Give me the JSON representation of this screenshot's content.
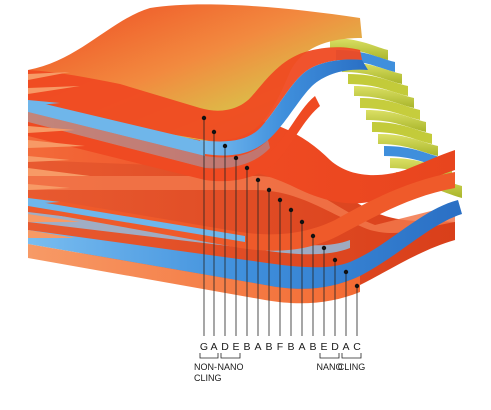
{
  "layer_labels": [
    "G",
    "A",
    "D",
    "E",
    "B",
    "A",
    "B",
    "F",
    "B",
    "A",
    "B",
    "E",
    "D",
    "A",
    "C"
  ],
  "group_labels": {
    "non_cling": [
      "NON-",
      "CLING"
    ],
    "nano_left": "NANO",
    "nano_right": "NANO",
    "cling": "CLING"
  },
  "colors": {
    "red": "#ef4a22",
    "orange": "#f57f3c",
    "yellow": "#c9cf3c",
    "blue": "#2f7fd0",
    "light_blue": "#6fb6ea",
    "leader": "#222222"
  }
}
